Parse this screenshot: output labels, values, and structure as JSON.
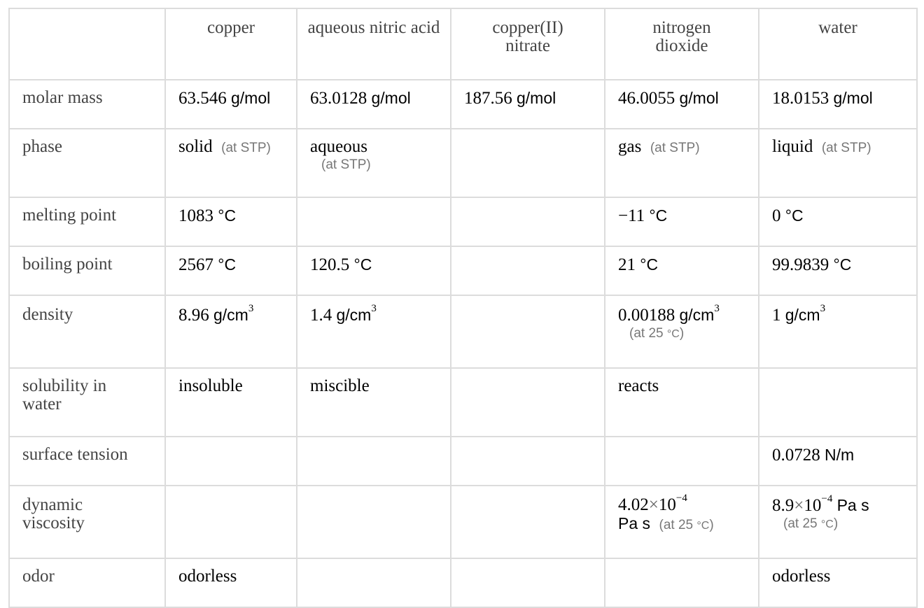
{
  "columns": [
    "copper",
    "aqueous nitric acid",
    "copper(II) nitrate",
    "nitrogen dioxide",
    "water"
  ],
  "rows": {
    "molar_mass": {
      "label": "molar mass",
      "copper": {
        "num": "63.546",
        "unit": "g/mol"
      },
      "nitric": {
        "num": "63.0128",
        "unit": "g/mol"
      },
      "cuno3": {
        "num": "187.56",
        "unit": "g/mol"
      },
      "no2": {
        "num": "46.0055",
        "unit": "g/mol"
      },
      "water": {
        "num": "18.0153",
        "unit": "g/mol"
      }
    },
    "phase": {
      "label": "phase",
      "copper": {
        "value": "solid",
        "note": "(at STP)"
      },
      "nitric": {
        "value": "aqueous",
        "note": "(at STP)"
      },
      "no2": {
        "value": "gas",
        "note": "(at STP)"
      },
      "water": {
        "value": "liquid",
        "note": "(at STP)"
      }
    },
    "melting_point": {
      "label": "melting point",
      "copper": {
        "num": "1083",
        "unit": "°C"
      },
      "no2": {
        "num": "−11",
        "unit": "°C"
      },
      "water": {
        "num": "0",
        "unit": "°C"
      }
    },
    "boiling_point": {
      "label": "boiling point",
      "copper": {
        "num": "2567",
        "unit": "°C"
      },
      "nitric": {
        "num": "120.5",
        "unit": "°C"
      },
      "no2": {
        "num": "21",
        "unit": "°C"
      },
      "water": {
        "num": "99.9839",
        "unit": "°C"
      }
    },
    "density": {
      "label": "density",
      "copper": {
        "num": "8.96",
        "unit": "g/cm",
        "sup": "3"
      },
      "nitric": {
        "num": "1.4",
        "unit": "g/cm",
        "sup": "3"
      },
      "no2": {
        "num": "0.00188",
        "unit": "g/cm",
        "sup": "3",
        "note_pre": "(at 25",
        "note_unit": "°C",
        "note_post": ")"
      },
      "water": {
        "num": "1",
        "unit": "g/cm",
        "sup": "3"
      }
    },
    "solubility": {
      "label_l1": "solubility in",
      "label_l2": "water",
      "copper": "insoluble",
      "nitric": "miscible",
      "no2": "reacts"
    },
    "surface_tension": {
      "label": "surface tension",
      "water": {
        "num": "0.0728",
        "unit": "N/m"
      }
    },
    "viscosity": {
      "label_l1": "dynamic",
      "label_l2": "viscosity",
      "no2": {
        "mant": "4.02",
        "times": "×",
        "base": "10",
        "exp": "−4",
        "unit": "Pa s",
        "note_pre": "(at 25",
        "note_unit": "°C",
        "note_post": ")"
      },
      "water": {
        "mant": "8.9",
        "times": "×",
        "base": "10",
        "exp": "−4",
        "unit": "Pa s",
        "note_pre": "(at 25",
        "note_unit": "°C",
        "note_post": ")"
      }
    },
    "odor": {
      "label": "odor",
      "copper": "odorless",
      "water": "odorless"
    }
  }
}
